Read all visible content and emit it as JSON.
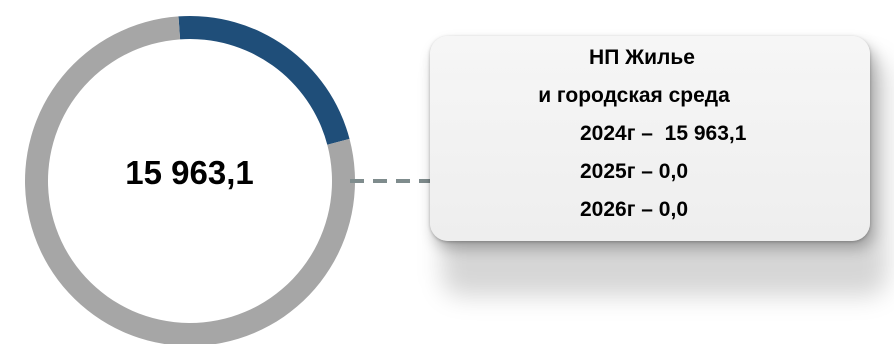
{
  "center_label": "15 963,1",
  "card": {
    "title_line1": "НП Жилье",
    "title_line2": "и городская среда",
    "rows": [
      "2024г –  15 963,1",
      "2025г – 0,0",
      "2026г – 0,0"
    ]
  },
  "colors": {
    "highlight": "#1f4e79",
    "remainder": "#a6a6a6",
    "connector": "#7f8c8d"
  },
  "chart_data": {
    "type": "pie",
    "title": "",
    "values": [
      {
        "label": "",
        "share": 0.22,
        "color": "#1f4e79"
      },
      {
        "label": "",
        "share": 0.78,
        "color": "#a6a6a6"
      }
    ],
    "center_label": "15 963,1",
    "legend": "none"
  }
}
